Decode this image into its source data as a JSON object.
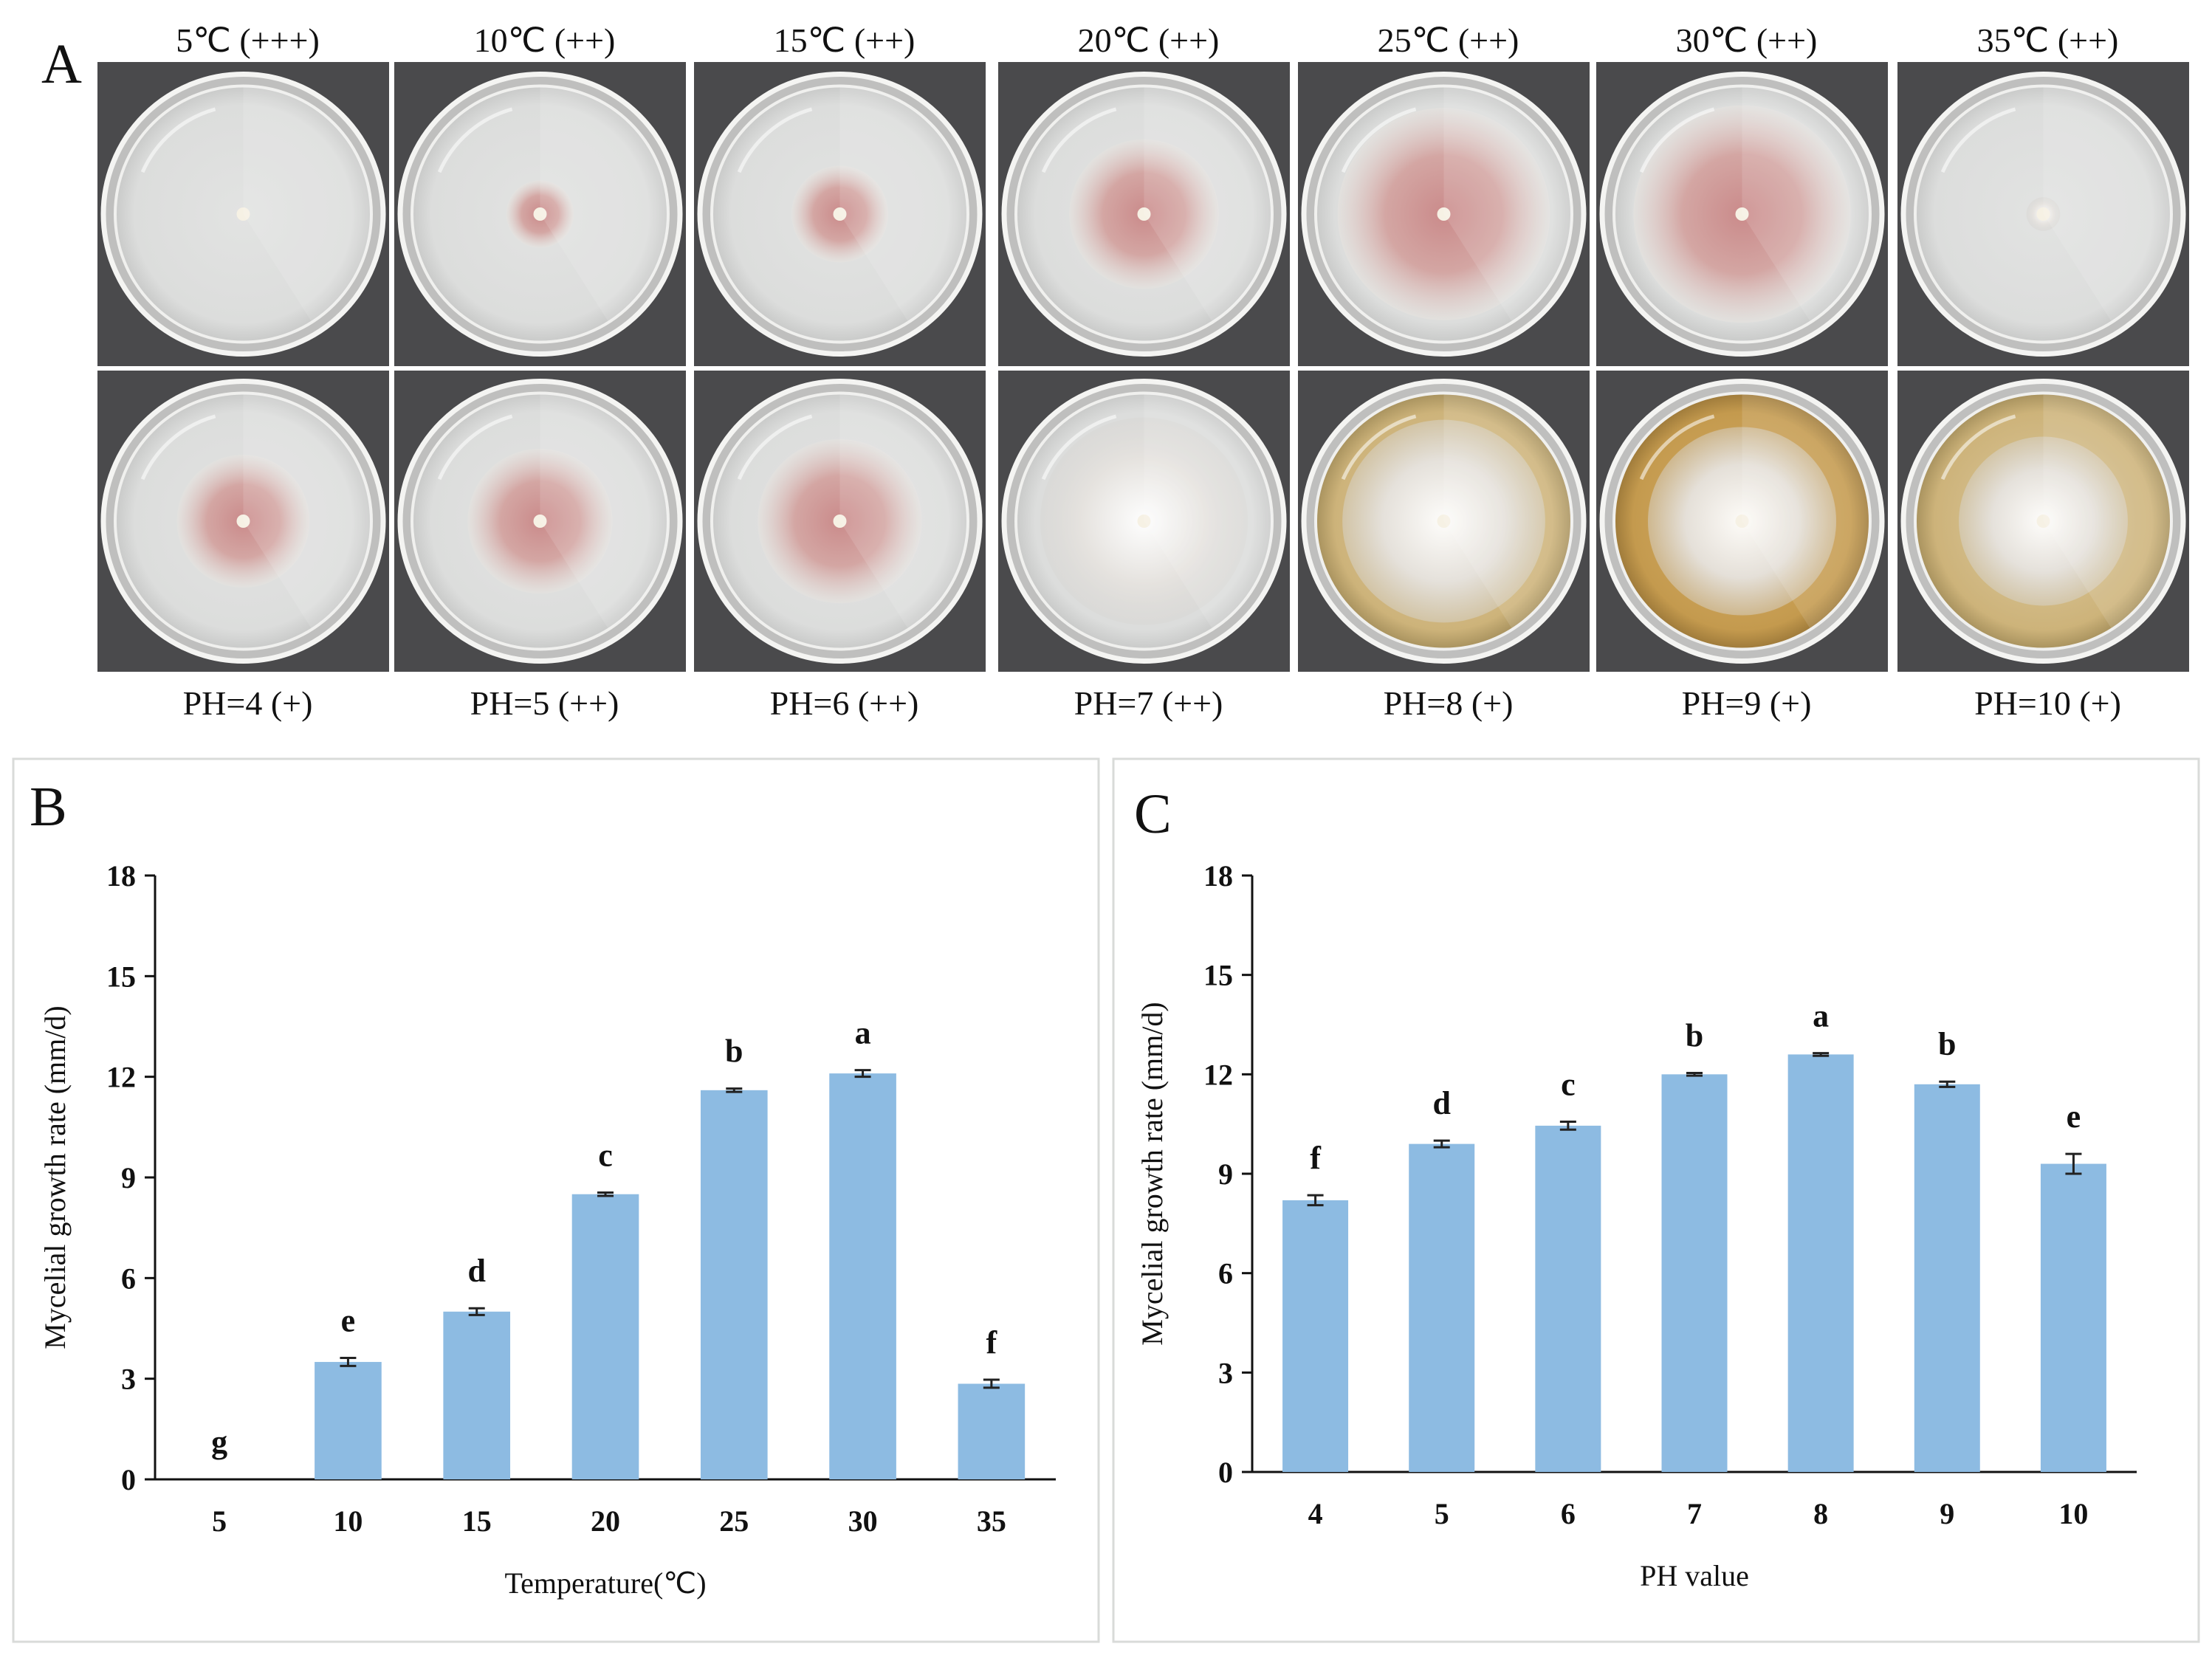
{
  "panels": {
    "A": "A",
    "B": "B",
    "C": "C"
  },
  "photos": {
    "temperature_labels": [
      "5℃ (+++)",
      "10℃ (++)",
      "15℃ (++)",
      "20℃ (++)",
      "25℃ (++)",
      "30℃ (++)",
      "35℃ (++)"
    ],
    "ph_labels": [
      "PH=4 (+)",
      "PH=5 (++)",
      "PH=6 (++)",
      "PH=7 (++)",
      "PH=8 (+)",
      "PH=9 (+)",
      "PH=10 (+)"
    ],
    "colors": {
      "background": "#4a4a4c",
      "agar": "#dcdddc",
      "rim": "#f4f4f2",
      "mycelium_pink": "#c98686",
      "mycelium_white": "#e6e3df",
      "yellow_medium": "#cdb37a",
      "amber_medium": "#c49a4e"
    },
    "temperature_plates": [
      {
        "colony": 0.05,
        "hue": "white",
        "medium": "clear"
      },
      {
        "colony": 0.28,
        "hue": "pink",
        "medium": "clear"
      },
      {
        "colony": 0.4,
        "hue": "pink",
        "medium": "clear"
      },
      {
        "colony": 0.62,
        "hue": "pink",
        "medium": "clear"
      },
      {
        "colony": 0.88,
        "hue": "pink",
        "medium": "clear"
      },
      {
        "colony": 0.9,
        "hue": "pink",
        "medium": "clear"
      },
      {
        "colony": 0.14,
        "hue": "white",
        "medium": "clear"
      }
    ],
    "ph_plates": [
      {
        "colony": 0.55,
        "hue": "pink",
        "medium": "clear"
      },
      {
        "colony": 0.6,
        "hue": "pink",
        "medium": "clear"
      },
      {
        "colony": 0.68,
        "hue": "pink",
        "medium": "clear"
      },
      {
        "colony": 0.86,
        "hue": "white",
        "medium": "clear"
      },
      {
        "colony": 0.84,
        "hue": "white",
        "medium": "yellow"
      },
      {
        "colony": 0.78,
        "hue": "white",
        "medium": "amber"
      },
      {
        "colony": 0.7,
        "hue": "white",
        "medium": "yellow"
      }
    ]
  },
  "chart_data": [
    {
      "id": "B",
      "type": "bar",
      "categories": [
        "5",
        "10",
        "15",
        "20",
        "25",
        "30",
        "35"
      ],
      "values": [
        0,
        3.5,
        5.0,
        8.5,
        11.6,
        12.1,
        2.85
      ],
      "errors": [
        0,
        0.12,
        0.1,
        0.05,
        0.05,
        0.1,
        0.12
      ],
      "significance": [
        "g",
        "e",
        "d",
        "c",
        "b",
        "a",
        "f"
      ],
      "title": "",
      "xlabel": "Temperature(℃)",
      "ylabel": "Mycelial growth rate (mm/d)",
      "ylim": [
        0,
        18
      ],
      "yticks": [
        "0",
        "3",
        "6",
        "9",
        "12",
        "15",
        "18"
      ],
      "bar_color": "#8dbbe2",
      "grid": false
    },
    {
      "id": "C",
      "type": "bar",
      "categories": [
        "4",
        "5",
        "6",
        "7",
        "8",
        "9",
        "10"
      ],
      "values": [
        8.2,
        9.9,
        10.45,
        12.0,
        12.6,
        11.7,
        9.3
      ],
      "errors": [
        0.15,
        0.1,
        0.12,
        0.04,
        0.04,
        0.08,
        0.3
      ],
      "significance": [
        "f",
        "d",
        "c",
        "b",
        "a",
        "b",
        "e"
      ],
      "title": "",
      "xlabel": "PH value",
      "ylabel": "Mycelial growth rate (mm/d)",
      "ylim": [
        0,
        18
      ],
      "yticks": [
        "0",
        "3",
        "6",
        "9",
        "12",
        "15",
        "18"
      ],
      "bar_color": "#8dbbe2",
      "grid": false
    }
  ]
}
